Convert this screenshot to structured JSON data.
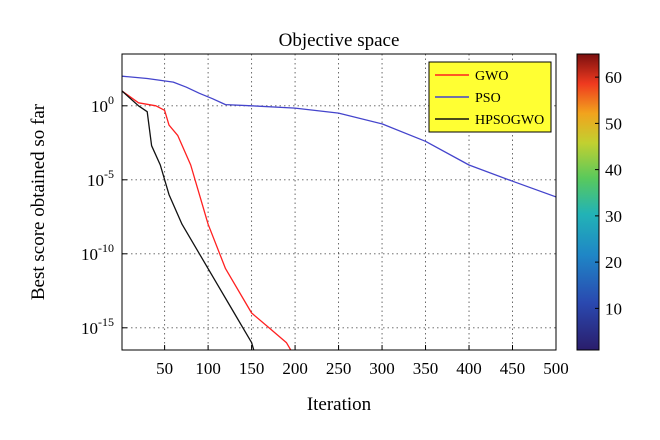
{
  "chart_data": {
    "type": "line",
    "title": "Objective space",
    "xlabel": "Iteration",
    "ylabel": "Best score obtained so far",
    "x_ticks": [
      "50",
      "100",
      "150",
      "200",
      "250",
      "300",
      "350",
      "400",
      "450",
      "500"
    ],
    "y_ticks": [
      {
        "base": "10",
        "exp": "0",
        "text": "10^0",
        "value": 1
      },
      {
        "base": "10",
        "exp": "-5",
        "text": "10^-5",
        "value": 1e-05
      },
      {
        "base": "10",
        "exp": "-10",
        "text": "10^-10",
        "value": 1e-10
      },
      {
        "base": "10",
        "exp": "-15",
        "text": "10^-15",
        "value": 1e-15
      }
    ],
    "xlim": [
      1,
      500
    ],
    "y_scale": "log",
    "ylim_log10": [
      -16.5,
      3.5
    ],
    "grid": true,
    "legend_position": "top-right",
    "series": [
      {
        "name": "GWO",
        "color": "#ff2020",
        "points": [
          [
            1,
            10
          ],
          [
            20,
            1.6
          ],
          [
            40,
            1.0
          ],
          [
            50,
            0.5
          ],
          [
            55,
            0.05
          ],
          [
            65,
            0.01
          ],
          [
            80,
            0.0001
          ],
          [
            90,
            1e-06
          ],
          [
            100,
            1e-08
          ],
          [
            120,
            1e-11
          ],
          [
            150,
            1e-14
          ],
          [
            170,
            1e-15
          ],
          [
            190,
            1e-16
          ],
          [
            200,
            1e-17
          ]
        ]
      },
      {
        "name": "PSO",
        "color": "#4444cc",
        "points": [
          [
            1,
            100
          ],
          [
            30,
            70
          ],
          [
            60,
            40
          ],
          [
            75,
            18
          ],
          [
            90,
            7
          ],
          [
            105,
            3
          ],
          [
            120,
            1.2
          ],
          [
            150,
            1.0
          ],
          [
            200,
            0.7
          ],
          [
            250,
            0.32
          ],
          [
            300,
            0.06
          ],
          [
            350,
            0.004
          ],
          [
            400,
            0.0001
          ],
          [
            450,
            8e-06
          ],
          [
            500,
            7e-07
          ]
        ]
      },
      {
        "name": "HPSOGWO",
        "color": "#111111",
        "points": [
          [
            1,
            10
          ],
          [
            20,
            1.0
          ],
          [
            30,
            0.4
          ],
          [
            35,
            0.002
          ],
          [
            45,
            0.0001
          ],
          [
            55,
            1e-06
          ],
          [
            70,
            1e-08
          ],
          [
            90,
            1e-10
          ],
          [
            110,
            1e-12
          ],
          [
            130,
            1e-14
          ],
          [
            140,
            1e-15
          ],
          [
            150,
            1e-16
          ],
          [
            155,
            1e-17
          ]
        ]
      }
    ],
    "colorbar": {
      "ticks": [
        "10",
        "20",
        "30",
        "40",
        "50",
        "60"
      ],
      "range": [
        1,
        65
      ],
      "colormap": [
        "#2a1d6b",
        "#2a49b0",
        "#1f86c6",
        "#22b3b6",
        "#59c95c",
        "#c2d030",
        "#f2a31d",
        "#ef3a1f",
        "#7a0f0f"
      ]
    }
  }
}
